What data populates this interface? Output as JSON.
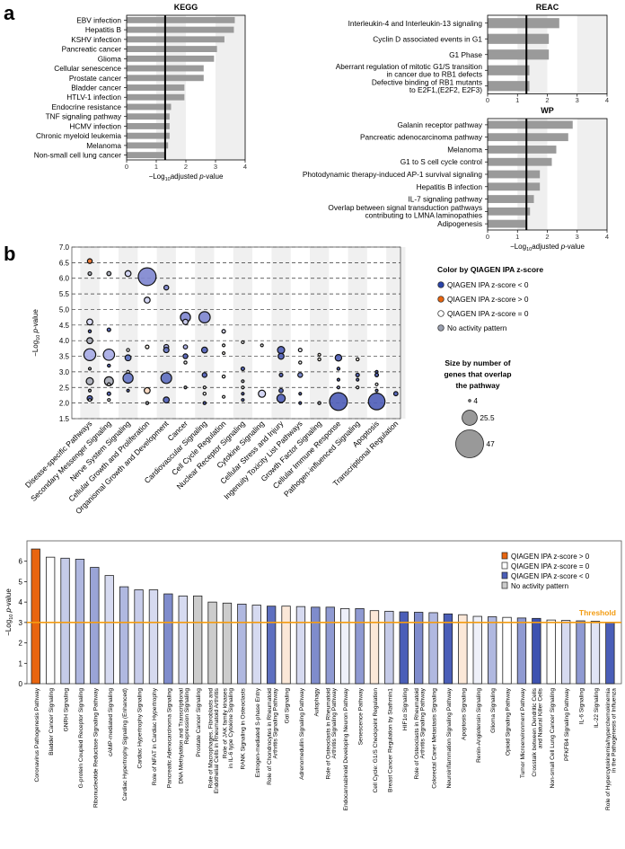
{
  "panel_labels": {
    "a": "a",
    "b": "b"
  },
  "colors": {
    "bar": "#9a9a9a",
    "threshold": "#f39c12",
    "band": "#efefef",
    "orange": "#e8650f"
  },
  "chart_data": [
    {
      "type": "bar",
      "orientation": "horizontal",
      "title": "KEGG",
      "xlabel": "−Log10 adjusted p-value",
      "xlabel_parts": [
        "−Log",
        "10",
        "adjusted ",
        "p",
        "-value"
      ],
      "xlim": [
        0,
        4
      ],
      "xticks": [
        "0",
        "1",
        "2",
        "3",
        "4"
      ],
      "threshold": 1.3,
      "categories": [
        "EBV infection",
        "Hepatitis B",
        "KSHV infection",
        "Pancreatic cancer",
        "Glioma",
        "Cellular senescence",
        "Prostate cancer",
        "Bladder cancer",
        "HTLV-1 infection",
        "Endocrine resistance",
        "TNF signaling pathway",
        "HCMV infection",
        "Chronic myeloid leukemia",
        "Melanoma",
        "Non-small cell lung cancer"
      ],
      "values": [
        3.65,
        3.62,
        3.3,
        3.05,
        2.95,
        2.6,
        2.6,
        1.95,
        1.95,
        1.5,
        1.45,
        1.45,
        1.45,
        1.4,
        1.32
      ]
    },
    {
      "type": "bar",
      "orientation": "horizontal",
      "title": "REAC",
      "xlim": [
        0,
        4
      ],
      "xticks": [
        "0",
        "1",
        "2",
        "3",
        "4"
      ],
      "threshold": 1.3,
      "categories": [
        [
          "Interleukin-4 and Interleukin-13 signaling"
        ],
        [
          "Cyclin D associated events in G1"
        ],
        [
          "G1 Phase"
        ],
        [
          "Aberrant regulation of mitotic G1/S transition",
          "in cancer due to RB1 defects"
        ],
        [
          "Defective binding of RB1 mutants",
          "to E2F1,(E2F2, E2F3)"
        ]
      ],
      "values": [
        2.4,
        2.05,
        2.05,
        1.4,
        1.4
      ]
    },
    {
      "type": "bar",
      "orientation": "horizontal",
      "title": "WP",
      "xlabel_parts": [
        "−Log",
        "10",
        "adjusted ",
        "p",
        "-value"
      ],
      "xlim": [
        0,
        4
      ],
      "xticks": [
        "0",
        "1",
        "2",
        "3",
        "4"
      ],
      "threshold": 1.3,
      "categories": [
        [
          "Galanin receptor pathway"
        ],
        [
          "Pancreatic adenocarcinoma pathway"
        ],
        [
          "Melanoma"
        ],
        [
          "G1 to S cell cycle control"
        ],
        [
          "Photodynamic therapy-induced AP-1 survival signaling"
        ],
        [
          "Hepatitis B infection"
        ],
        [
          "IL-7 signaling pathway"
        ],
        [
          "Overlap between signal transduction pathways",
          "contributing to LMNA laminopathies"
        ],
        [
          "Adipogenesis"
        ]
      ],
      "values": [
        2.85,
        2.7,
        2.3,
        2.15,
        1.75,
        1.75,
        1.55,
        1.42,
        1.3
      ]
    },
    {
      "type": "scatter",
      "subtype": "bubble",
      "ylabel_parts": [
        "−Log",
        "10",
        " ",
        "p",
        "-value"
      ],
      "ylim": [
        1.5,
        7.0
      ],
      "yticks": [
        "1.5",
        "2.0",
        "2.5",
        "3.0",
        "3.5",
        "4.0",
        "4.5",
        "5.0",
        "5.5",
        "6.0",
        "6.5",
        "7.0"
      ],
      "categories": [
        "Disease-specific Pathways",
        "Secondary Messenger Signaling",
        "Nerve System Signaling",
        "Cellular Growth and Proliferation",
        "Organismal Growth and Development",
        "Cancer",
        "Cardiovascular Signaling",
        "Cell Cycle Regulation",
        "Nuclear Receptor Signaling",
        "Cytokine Signaling",
        "Cellular Stress and Injury",
        "Ingenuity Toxicity List Pathways",
        "Growth Factor Signaling",
        "Cellular Immune Response",
        "Pathogen-influenced Signaling",
        "Apoptosis",
        "Transcriptional Regulation"
      ],
      "points": [
        [
          0,
          6.55,
          8,
          "#e8702a"
        ],
        [
          0,
          6.15,
          6,
          "#a9adb8"
        ],
        [
          0,
          4.6,
          10,
          "#d8daf5"
        ],
        [
          0,
          4.3,
          5,
          "#4a5bb5"
        ],
        [
          0,
          4.0,
          10,
          "#a9adb8"
        ],
        [
          0,
          3.55,
          20,
          "#a8ace6"
        ],
        [
          0,
          3.1,
          4,
          "#a9adb8"
        ],
        [
          0,
          2.7,
          12,
          "#a9adb8"
        ],
        [
          0,
          2.4,
          3,
          "#a9adb8"
        ],
        [
          0,
          2.15,
          9,
          "#4a5bb5"
        ],
        [
          0,
          2.1,
          4,
          "#ffffff"
        ],
        [
          1,
          6.15,
          7,
          "#a9adb8"
        ],
        [
          1,
          4.35,
          6,
          "#4a5bb5"
        ],
        [
          1,
          3.55,
          19,
          "#a8ace6"
        ],
        [
          1,
          3.2,
          5,
          "#4a5bb5"
        ],
        [
          1,
          2.7,
          15,
          "#a9adb8"
        ],
        [
          1,
          2.6,
          5,
          "#ffffff"
        ],
        [
          1,
          2.3,
          6,
          "#4a5bb5"
        ],
        [
          1,
          2.1,
          4,
          "#ffffff"
        ],
        [
          2,
          6.15,
          10,
          "#d0d2f3"
        ],
        [
          2,
          3.7,
          5,
          "#ffffff"
        ],
        [
          2,
          3.45,
          10,
          "#5a70c0"
        ],
        [
          2,
          3.0,
          5,
          "#ffffff"
        ],
        [
          2,
          2.8,
          17,
          "#6878c8"
        ],
        [
          2,
          2.4,
          4,
          "#4a5bb5"
        ],
        [
          3,
          6.05,
          30,
          "#8088d0"
        ],
        [
          3,
          5.3,
          10,
          "#d0d2f3"
        ],
        [
          3,
          3.8,
          6,
          "#fdf3e6"
        ],
        [
          3,
          2.4,
          10,
          "#fbd8bf"
        ],
        [
          3,
          2.0,
          5,
          "#a9adb8"
        ],
        [
          4,
          5.7,
          8,
          "#8088d0"
        ],
        [
          4,
          3.8,
          8,
          "#a8ace6"
        ],
        [
          4,
          3.7,
          9,
          "#6878c8"
        ],
        [
          4,
          2.8,
          18,
          "#6070c0"
        ],
        [
          4,
          2.1,
          10,
          "#5060b8"
        ],
        [
          5,
          4.75,
          17,
          "#8088d0"
        ],
        [
          5,
          4.6,
          9,
          "#d0d2f3"
        ],
        [
          5,
          3.8,
          7,
          "#a8ace6"
        ],
        [
          5,
          3.5,
          8,
          "#5060b8"
        ],
        [
          5,
          3.3,
          5,
          "#ffffff"
        ],
        [
          5,
          2.5,
          3,
          "#a9adb8"
        ],
        [
          6,
          4.75,
          19,
          "#8088d0"
        ],
        [
          6,
          3.7,
          10,
          "#5060b8"
        ],
        [
          6,
          2.9,
          8,
          "#5060b8"
        ],
        [
          6,
          2.5,
          4,
          "#ffffff"
        ],
        [
          6,
          2.3,
          5,
          "#ffffff"
        ],
        [
          6,
          2.0,
          5,
          "#4a5bb5"
        ],
        [
          7,
          4.3,
          6,
          "#d0d2f3"
        ],
        [
          7,
          3.85,
          3,
          "#ffffff"
        ],
        [
          7,
          3.6,
          4,
          "#fdf3e6"
        ],
        [
          7,
          2.85,
          5,
          "#ffffff"
        ],
        [
          7,
          2.2,
          3,
          "#ffffff"
        ],
        [
          8,
          3.95,
          3,
          "#ffffff"
        ],
        [
          8,
          3.1,
          6,
          "#4a5bb5"
        ],
        [
          8,
          2.7,
          4,
          "#a9adb8"
        ],
        [
          8,
          2.5,
          4,
          "#ffffff"
        ],
        [
          8,
          2.3,
          3,
          "#4a5bb5"
        ],
        [
          8,
          2.1,
          3,
          "#4a5bb5"
        ],
        [
          9,
          3.85,
          3,
          "#ffffff"
        ],
        [
          9,
          2.3,
          12,
          "#d0d2f3"
        ],
        [
          10,
          3.7,
          12,
          "#5060b8"
        ],
        [
          10,
          3.5,
          10,
          "#5060b8"
        ],
        [
          10,
          2.9,
          6,
          "#5060b8"
        ],
        [
          10,
          2.4,
          7,
          "#4a5bb5"
        ],
        [
          10,
          2.15,
          14,
          "#5060b8"
        ],
        [
          11,
          3.7,
          6,
          "#eeeefa"
        ],
        [
          11,
          3.3,
          5,
          "#ffffff"
        ],
        [
          11,
          2.9,
          8,
          "#7080c8"
        ],
        [
          11,
          2.3,
          4,
          "#4a5bb5"
        ],
        [
          11,
          2.0,
          4,
          "#4a5bb5"
        ],
        [
          12,
          3.55,
          4,
          "#fdf3e6"
        ],
        [
          12,
          3.4,
          5,
          "#fdf3e6"
        ],
        [
          12,
          2.0,
          5,
          "#a9adb8"
        ],
        [
          13,
          3.45,
          11,
          "#5060b8"
        ],
        [
          13,
          3.1,
          5,
          "#4a5bb5"
        ],
        [
          13,
          2.75,
          3,
          "#4a5bb5"
        ],
        [
          13,
          2.5,
          4,
          "#a8ace6"
        ],
        [
          13,
          2.05,
          30,
          "#5060b8"
        ],
        [
          14,
          3.4,
          5,
          "#fdf3e6"
        ],
        [
          14,
          2.9,
          6,
          "#4a5bb5"
        ],
        [
          14,
          2.75,
          3,
          "#4a5bb5"
        ],
        [
          14,
          2.5,
          3,
          "#ffffff"
        ],
        [
          15,
          3.0,
          4,
          "#4a5bb5"
        ],
        [
          15,
          2.9,
          6,
          "#4a5bb5"
        ],
        [
          15,
          2.6,
          3,
          "#ffffff"
        ],
        [
          15,
          2.4,
          4,
          "#4a5bb5"
        ],
        [
          15,
          2.05,
          28,
          "#5060b8"
        ],
        [
          16,
          2.3,
          7,
          "#4a5bb5"
        ]
      ],
      "legend": {
        "color_title": "Color by QIAGEN IPA z-score",
        "color_items": [
          {
            "label": "QIAGEN IPA z-score < 0",
            "color": "#2a44a8"
          },
          {
            "label": "QIAGEN IPA z-score > 0",
            "color": "#e8650f"
          },
          {
            "label": "QIAGEN IPA z-score = 0",
            "color": "#ffffff"
          },
          {
            "label": "No activity pattern",
            "color": "#9aa0b0"
          }
        ],
        "size_title": [
          "Size by number of",
          "genes that overlap",
          "the pathway"
        ],
        "size_items": [
          {
            "label": "4",
            "value": 4
          },
          {
            "label": "25.5",
            "value": 25.5
          },
          {
            "label": "47",
            "value": 47
          }
        ]
      }
    },
    {
      "type": "bar",
      "ylabel_parts": [
        "−Log",
        "10",
        " ",
        "p",
        "-value"
      ],
      "ylim": [
        0,
        7
      ],
      "yticks": [
        "0",
        "1",
        "2",
        "3",
        "4",
        "5",
        "6"
      ],
      "threshold": 3,
      "threshold_label": "Threshold",
      "legend": [
        {
          "label": "QIAGEN IPA z-score > 0",
          "color": "#e8650f"
        },
        {
          "label": "QIAGEN IPA z-score = 0",
          "color": "#ffffff"
        },
        {
          "label": "QIAGEN IPA z-score < 0",
          "color": "#4a5eb8"
        },
        {
          "label": "No activity pattern",
          "color": "#cccccc"
        }
      ],
      "categories": [
        [
          "Coronavirus Pathogenesis Pathway"
        ],
        [
          "Bladder Cancer Signaling"
        ],
        [
          "GNRH Signaling"
        ],
        [
          "G-protein Coupled Receptor Signaling"
        ],
        [
          "Ribonucleotide Reductase Signaling Pathway"
        ],
        [
          "cAMP-mediated Signaling"
        ],
        [
          "Cardiac Hypertrophy Signaling (Enhanced)"
        ],
        [
          "Cardiac Hypertrophy Signaling"
        ],
        [
          "Role of NFAT in Cardiac Hypertrophy"
        ],
        [
          "Pancreatic Adenocarcinoma Signaling"
        ],
        [
          "DNA Methylation and Transcriptional",
          "Repression Signaling"
        ],
        [
          "Prostate Cancer Signaling"
        ],
        [
          "Role of Macrophages, Fibroblasts and",
          "Endothelial Cells in Rheumatoid Arthritis"
        ],
        [
          "Role of JAK family kinases",
          "in IL-6 type Cytokine Signaling"
        ],
        [
          "RANK Signaling in Osteoclasts"
        ],
        [
          "Estrogen-mediated S-phase Entry"
        ],
        [
          "Role of Chondrocytes in Rheumatoid",
          "Arthritis Signaling Pathway"
        ],
        [
          "Gαi Signaling"
        ],
        [
          "Adrenomedullin Signaling Pathway"
        ],
        [
          "Autophagy"
        ],
        [
          "Role of Osteoclasts in Rheumatoid",
          "Arthritis Signaling Pathway"
        ],
        [
          "Endocannabinoid Developing Neuron Pathway"
        ],
        [
          "Senescence Pathway"
        ],
        [
          "Cell Cycle: G1/S Checkpoint Regulation"
        ],
        [
          "Breast Cancer Regulation by Stathmin1"
        ],
        [
          "HIF1α Signaling"
        ],
        [
          "Role of Osteoclasts in Rheumatoid",
          "Arthritis Signaling Pathway"
        ],
        [
          "Colorectal Caner Metastasis Signaling"
        ],
        [
          "Neuroinflammation Signaling Pathway"
        ],
        [
          "Apoptosis Signaling"
        ],
        [
          "Renin-Angiotensin Signaling"
        ],
        [
          "Glioma Signaling"
        ],
        [
          "Opioid Signaling Pathway"
        ],
        [
          "Tumor Microenvironment Pathway"
        ],
        [
          "Crosstalk between Dendritic Cells",
          "and Natural Killer Cells"
        ],
        [
          "Non-small Cell Lung Cancer Signaling"
        ],
        [
          "PFKFB4 Signaling Pathway"
        ],
        [
          "IL-6 Signaling"
        ],
        [
          "IL-22 Signaling"
        ],
        [
          "Role of Hypercytokinemia/hyperchemokinemia",
          "in the Pathogenesis of Influenza"
        ]
      ],
      "values": [
        6.6,
        6.2,
        6.15,
        6.1,
        5.7,
        5.3,
        4.75,
        4.6,
        4.6,
        4.4,
        4.3,
        4.3,
        4.0,
        3.95,
        3.9,
        3.85,
        3.8,
        3.8,
        3.78,
        3.75,
        3.75,
        3.68,
        3.68,
        3.58,
        3.55,
        3.52,
        3.5,
        3.48,
        3.42,
        3.38,
        3.3,
        3.28,
        3.25,
        3.22,
        3.2,
        3.12,
        3.1,
        3.08,
        3.06,
        3.0
      ],
      "bar_colors": [
        "#e8650f",
        "#ffffff",
        "#c5cbe8",
        "#b0b8e0",
        "#9aa4d6",
        "#d6daf0",
        "#b0b8e0",
        "#c8cdea",
        "#d6daf0",
        "#7f8ccc",
        "#d6daf0",
        "#cccccc",
        "#cccccc",
        "#cccccc",
        "#b0b8e0",
        "#d6daf0",
        "#5d6fc0",
        "#fbe8d8",
        "#d6daf0",
        "#7f8ccc",
        "#8f9ad2",
        "#eef0f9",
        "#8f9ad2",
        "#fbe8d8",
        "#c5cbe8",
        "#4a5eb8",
        "#7f8ccc",
        "#b0b8e0",
        "#4a5eb8",
        "#fbe8d8",
        "#eef0f9",
        "#b0b8e0",
        "#ffffff",
        "#8f9ad2",
        "#3d52b0",
        "#ffffff",
        "#d6daf0",
        "#8f9ad2",
        "#e0e4f5",
        "#4a5eb8"
      ]
    }
  ]
}
